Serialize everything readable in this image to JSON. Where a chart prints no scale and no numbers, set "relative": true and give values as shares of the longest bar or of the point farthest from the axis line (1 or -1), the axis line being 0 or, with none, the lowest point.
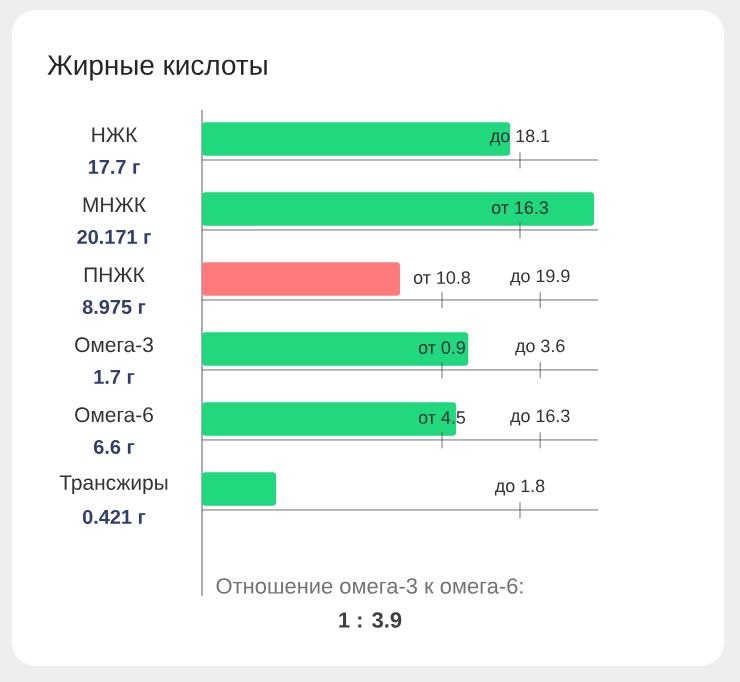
{
  "chart_data": {
    "type": "bar",
    "grid": "y",
    "orientation": "horizontal",
    "relative": true,
    "title": "Жирные кислоты",
    "categories": [
      "НЖК",
      "МНЖК",
      "ПНЖК",
      "Омега-3",
      "Омега-6",
      "Трансжиры"
    ],
    "values": [
      0.786,
      1.0,
      0.505,
      0.679,
      0.648,
      0.189
    ],
    "colors": [
      "#22d87f",
      "#22d87f",
      "#ff7b7b",
      "#22d87f",
      "#22d87f",
      "#22d87f"
    ],
    "annotations": [
      "17.7 г",
      "до 18.1",
      "20.171 г",
      "от 16.3",
      "8.975 г",
      "от 10.8",
      "до 19.9",
      "1.7 г",
      "от 0.9",
      "до 3.6",
      "6.6 г",
      "от 4.5",
      "до 16.3",
      "0.421 г",
      "до 1.8",
      "Отношение омега-3 к омега-6:",
      "1 : 3.9"
    ]
  }
}
